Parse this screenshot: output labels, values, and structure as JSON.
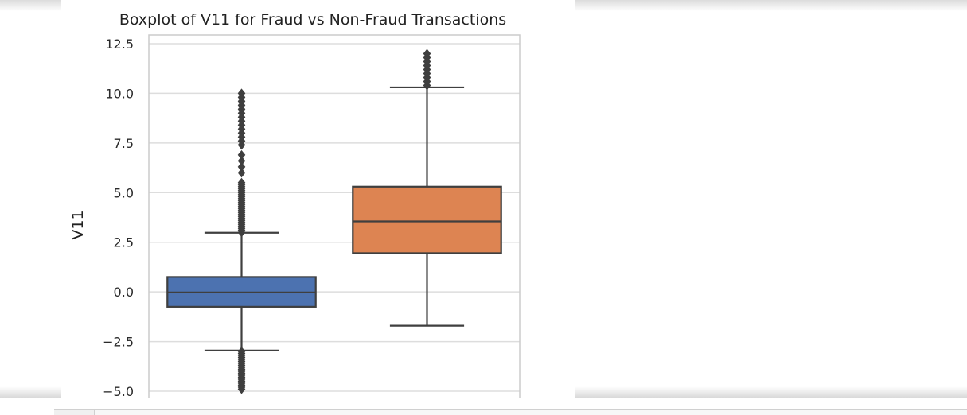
{
  "chart_data": {
    "type": "box",
    "title": "Boxplot of V11 for Fraud vs Non-Fraud Transactions",
    "xlabel": "",
    "ylabel": "V11",
    "ylim": [
      -5.0,
      12.5
    ],
    "yticks": [
      12.5,
      10.0,
      7.5,
      5.0,
      2.5,
      0.0,
      -2.5,
      -5.0
    ],
    "ytick_labels": [
      "12.5",
      "10.0",
      "7.5",
      "5.0",
      "2.5",
      "0.0",
      "−2.5",
      "−5.0"
    ],
    "grid": true,
    "series": [
      {
        "color": "#4c72b0",
        "q1": -0.75,
        "median": -0.03,
        "q3": 0.75,
        "whisker_low": -2.95,
        "whisker_high": 2.98,
        "outliers": [
          3.0,
          3.1,
          3.2,
          3.3,
          3.4,
          3.5,
          3.6,
          3.7,
          3.8,
          3.9,
          4.0,
          4.1,
          4.2,
          4.3,
          4.4,
          4.5,
          4.6,
          4.7,
          4.8,
          4.9,
          5.0,
          5.1,
          5.2,
          5.3,
          5.4,
          5.5,
          6.0,
          6.3,
          6.6,
          6.9,
          7.4,
          7.6,
          7.8,
          8.0,
          8.2,
          8.4,
          8.6,
          8.8,
          9.0,
          9.2,
          9.4,
          9.6,
          9.8,
          10.0,
          -3.0,
          -3.1,
          -3.2,
          -3.3,
          -3.4,
          -3.5,
          -3.6,
          -3.7,
          -3.8,
          -3.9,
          -4.0,
          -4.1,
          -4.2,
          -4.3,
          -4.4,
          -4.5,
          -4.6,
          -4.7,
          -4.8,
          -4.9
        ]
      },
      {
        "color": "#dd8452",
        "q1": 1.95,
        "median": 3.55,
        "q3": 5.3,
        "whisker_low": -1.7,
        "whisker_high": 10.3,
        "outliers": [
          10.4,
          10.6,
          10.8,
          11.0,
          11.2,
          11.4,
          11.6,
          11.8,
          12.0
        ]
      }
    ]
  }
}
